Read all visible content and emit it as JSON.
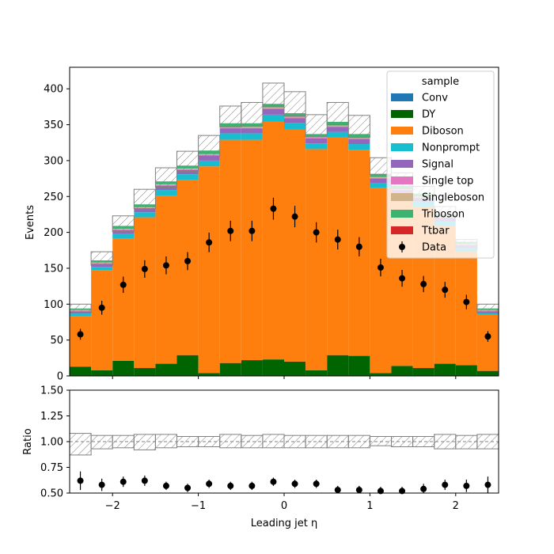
{
  "chart_data": {
    "type": "stacked-histogram-with-ratio",
    "xlabel": "Leading jet  η",
    "ylabel": "Events",
    "ratio_ylabel": "Ratio",
    "xlim": [
      -2.5,
      2.5
    ],
    "ylim": [
      0,
      430
    ],
    "ratio_ylim": [
      0.5,
      1.5
    ],
    "xticks": [
      -2,
      -1,
      0,
      1,
      2
    ],
    "xtick_labels": [
      "−2",
      "−1",
      "0",
      "1",
      "2"
    ],
    "yticks": [
      0,
      50,
      100,
      150,
      200,
      250,
      300,
      350,
      400
    ],
    "ratio_yticks": [
      0.5,
      0.75,
      1.0,
      1.25,
      1.5
    ],
    "ratio_ytick_labels": [
      "0.50",
      "0.75",
      "1.00",
      "1.25",
      "1.50"
    ],
    "bin_edges": [
      -2.5,
      -2.25,
      -2.0,
      -1.75,
      -1.5,
      -1.25,
      -1.0,
      -0.75,
      -0.5,
      -0.25,
      0.0,
      0.25,
      0.5,
      0.75,
      1.0,
      1.25,
      1.5,
      1.75,
      2.0,
      2.25,
      2.5
    ],
    "legend": {
      "title": "sample",
      "position": "top-right",
      "entries": [
        "Conv",
        "DY",
        "Diboson",
        "Nonprompt",
        "Signal",
        "Single top",
        "Singleboson",
        "Triboson",
        "Ttbar",
        "Data"
      ]
    },
    "series": [
      {
        "name": "Conv",
        "color": "#1f77b4",
        "values": [
          0,
          0,
          0,
          0,
          0,
          0,
          0,
          0,
          0,
          0,
          0,
          0,
          0,
          0,
          0,
          0,
          0,
          0,
          0,
          0
        ]
      },
      {
        "name": "DY",
        "color": "#006400",
        "values": [
          13,
          8,
          21,
          11,
          17,
          29,
          4,
          18,
          22,
          23,
          20,
          8,
          29,
          28,
          4,
          14,
          11,
          17,
          15,
          7
        ]
      },
      {
        "name": "Diboson",
        "color": "#ff7f0e",
        "values": [
          70,
          139,
          170,
          210,
          234,
          244,
          288,
          311,
          307,
          331,
          323,
          308,
          303,
          287,
          258,
          233,
          225,
          192,
          158,
          78
        ]
      },
      {
        "name": "Nonprompt",
        "color": "#17becf",
        "values": [
          4,
          5,
          7,
          7,
          8,
          8,
          8,
          9,
          9,
          10,
          9,
          8,
          8,
          8,
          7,
          7,
          7,
          6,
          5,
          3
        ]
      },
      {
        "name": "Signal",
        "color": "#9467bd",
        "values": [
          3,
          4,
          5,
          5,
          6,
          6,
          7,
          7,
          7,
          8,
          7,
          7,
          7,
          7,
          6,
          5,
          5,
          5,
          4,
          2
        ]
      },
      {
        "name": "Single top",
        "color": "#e377c2",
        "values": [
          1,
          1,
          1,
          1,
          1,
          1,
          1,
          1,
          1,
          1,
          1,
          1,
          1,
          1,
          1,
          1,
          1,
          1,
          1,
          1
        ]
      },
      {
        "name": "Singleboson",
        "color": "#d2b48c",
        "values": [
          1,
          1,
          1,
          1,
          1,
          1,
          1,
          1,
          1,
          1,
          1,
          1,
          1,
          1,
          1,
          1,
          1,
          1,
          1,
          1
        ]
      },
      {
        "name": "Triboson",
        "color": "#3cb371",
        "values": [
          2,
          3,
          4,
          4,
          4,
          4,
          5,
          5,
          5,
          5,
          5,
          4,
          5,
          5,
          4,
          4,
          4,
          3,
          3,
          2
        ]
      },
      {
        "name": "Ttbar",
        "color": "#d62728",
        "values": [
          0,
          0,
          0,
          0,
          0,
          0,
          0,
          0,
          0,
          0,
          0,
          0,
          0,
          0,
          0,
          0,
          0,
          0,
          0,
          0
        ]
      }
    ],
    "uncertainty_band": {
      "up": [
        100,
        173,
        223,
        260,
        290,
        313,
        335,
        376,
        381,
        408,
        396,
        364,
        381,
        363,
        304,
        283,
        264,
        236,
        190,
        100
      ],
      "down": [
        88,
        154,
        201,
        233,
        263,
        285,
        306,
        347,
        348,
        376,
        362,
        333,
        350,
        332,
        281,
        261,
        245,
        220,
        176,
        88
      ]
    },
    "data": {
      "name": "Data",
      "values": [
        58,
        95,
        127,
        149,
        154,
        160,
        186,
        202,
        202,
        233,
        222,
        200,
        190,
        180,
        151,
        136,
        128,
        120,
        103,
        55
      ],
      "errors": [
        7.6,
        9.7,
        11.3,
        12.2,
        12.4,
        12.6,
        13.6,
        14.2,
        14.2,
        15.3,
        14.9,
        14.1,
        13.8,
        13.4,
        12.3,
        11.7,
        11.3,
        11.0,
        10.1,
        7.4
      ]
    },
    "ratio": {
      "values": [
        0.62,
        0.58,
        0.61,
        0.62,
        0.57,
        0.55,
        0.59,
        0.57,
        0.57,
        0.61,
        0.59,
        0.59,
        0.53,
        0.53,
        0.52,
        0.52,
        0.54,
        0.58,
        0.57,
        0.58
      ],
      "errors": [
        0.09,
        0.06,
        0.05,
        0.05,
        0.04,
        0.04,
        0.04,
        0.04,
        0.04,
        0.04,
        0.04,
        0.04,
        0.04,
        0.04,
        0.04,
        0.04,
        0.05,
        0.05,
        0.06,
        0.08
      ],
      "band_up": [
        1.08,
        1.06,
        1.06,
        1.07,
        1.07,
        1.05,
        1.05,
        1.07,
        1.06,
        1.07,
        1.06,
        1.06,
        1.06,
        1.06,
        1.05,
        1.05,
        1.05,
        1.07,
        1.06,
        1.07
      ],
      "band_down": [
        0.87,
        0.93,
        0.94,
        0.92,
        0.94,
        0.95,
        0.95,
        0.94,
        0.94,
        0.94,
        0.94,
        0.94,
        0.94,
        0.94,
        0.96,
        0.95,
        0.95,
        0.93,
        0.93,
        0.93
      ]
    }
  }
}
